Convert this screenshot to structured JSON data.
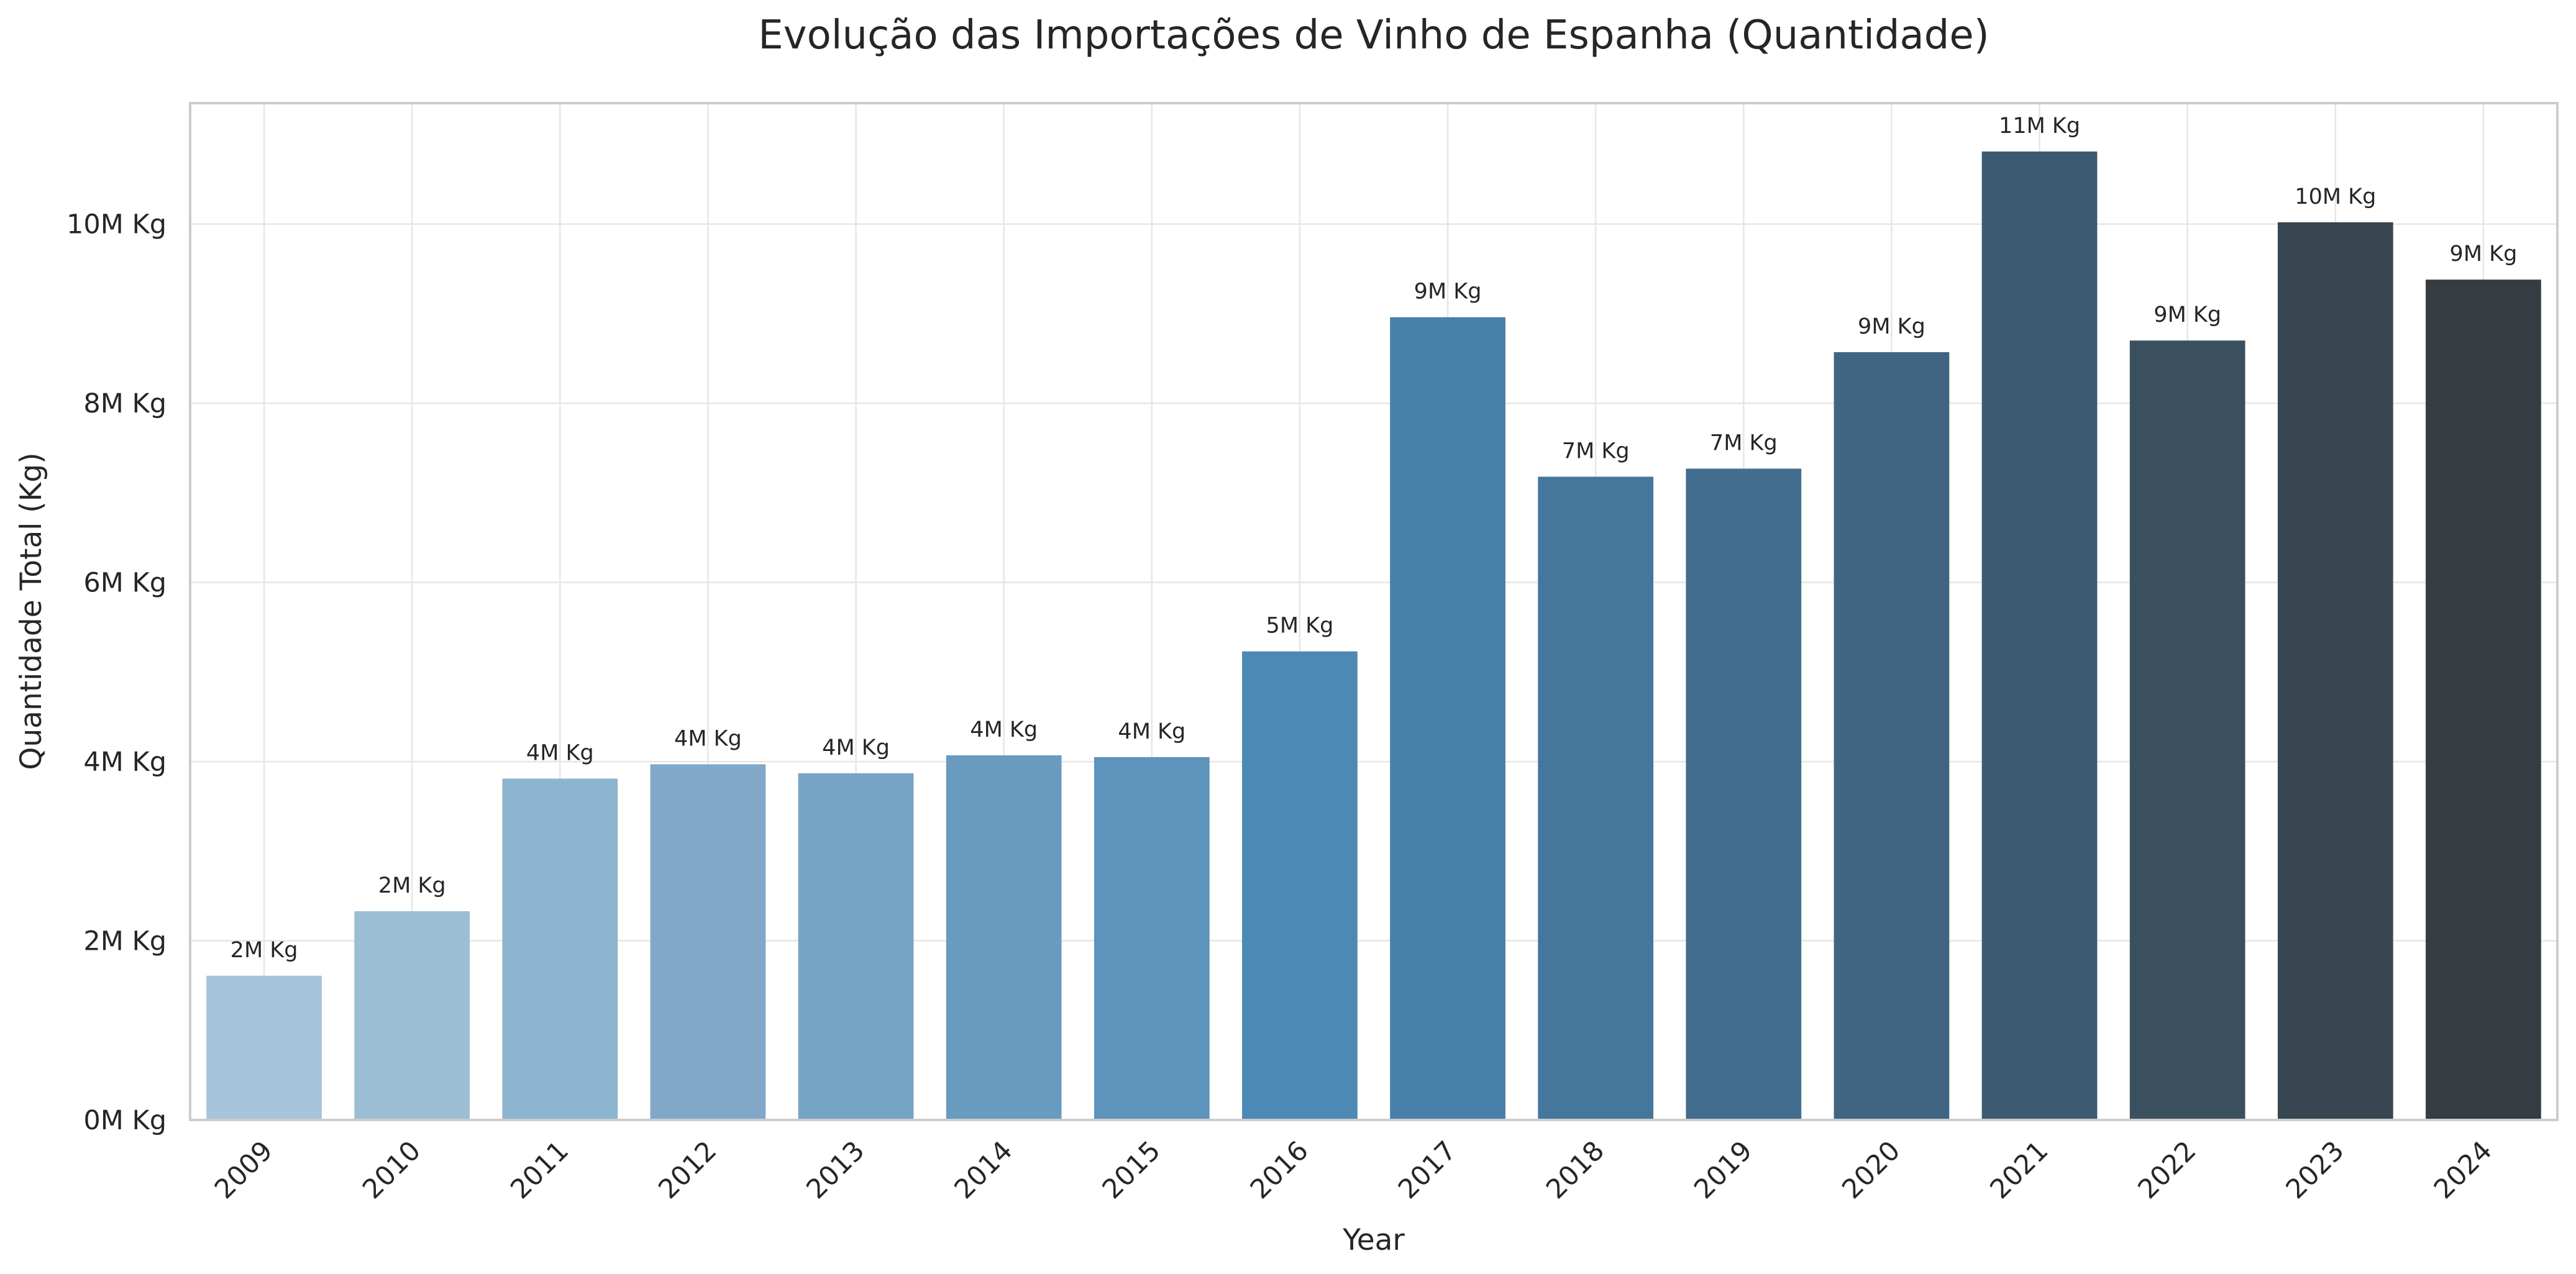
{
  "chart_data": {
    "type": "bar",
    "title": "Evolução das Importações de Vinho de Espanha (Quantidade)",
    "xlabel": "Year",
    "ylabel": "Quantidade Total (Kg)",
    "categories": [
      "2009",
      "2010",
      "2011",
      "2012",
      "2013",
      "2014",
      "2015",
      "2016",
      "2017",
      "2018",
      "2019",
      "2020",
      "2021",
      "2022",
      "2023",
      "2024"
    ],
    "values": [
      1610000,
      2330000,
      3810000,
      3970000,
      3870000,
      4070000,
      4050000,
      5230000,
      8960000,
      7180000,
      7270000,
      8570000,
      10810000,
      8700000,
      10020000,
      9380000
    ],
    "data_labels": [
      "2M Kg",
      "2M Kg",
      "4M Kg",
      "4M Kg",
      "4M Kg",
      "4M Kg",
      "4M Kg",
      "5M Kg",
      "9M Kg",
      "7M Kg",
      "7M Kg",
      "9M Kg",
      "11M Kg",
      "9M Kg",
      "10M Kg",
      "9M Kg"
    ],
    "colors": [
      "#a6c5da",
      "#9bbed5",
      "#8db4cf",
      "#81a8c9",
      "#76a4c5",
      "#699bc0",
      "#5e93bc",
      "#4c89b5",
      "#477fa9",
      "#45779c",
      "#426d8e",
      "#3f6582",
      "#3d5a70",
      "#3b505f",
      "#374650",
      "#353c42"
    ],
    "yticks": [
      0,
      2000000,
      4000000,
      6000000,
      8000000,
      10000000
    ],
    "ytick_labels": [
      "0M Kg",
      "2M Kg",
      "4M Kg",
      "6M Kg",
      "8M Kg",
      "10M Kg"
    ],
    "ylim": [
      0,
      11350000
    ],
    "grid": true,
    "legend": "none",
    "x_tick_rotation_deg": 45
  }
}
